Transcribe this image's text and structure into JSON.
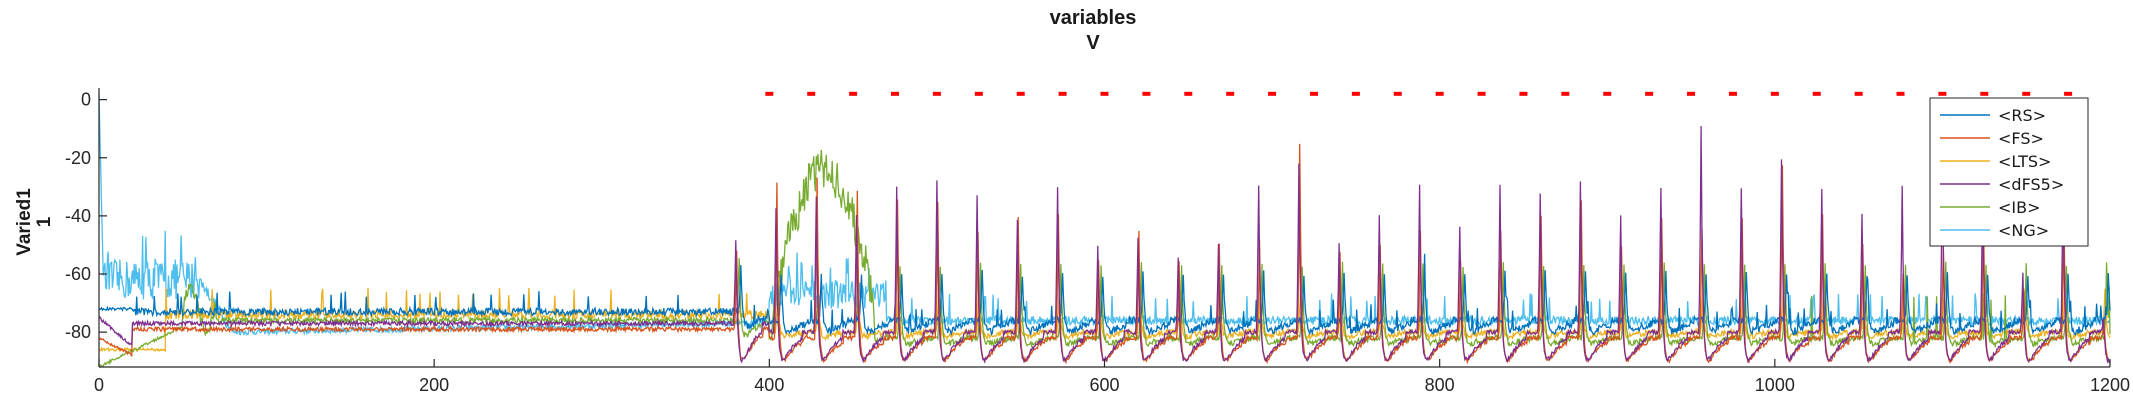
{
  "chart_data": {
    "type": "line",
    "title": "variables",
    "subtitle": "V",
    "ylabel": "Varied1",
    "ylabel2": "1",
    "xlabel": "",
    "xlim": [
      0,
      1200
    ],
    "ylim": [
      -92,
      4
    ],
    "x_ticks": [
      0,
      200,
      400,
      600,
      800,
      1000,
      1200
    ],
    "y_ticks": [
      0,
      -20,
      -40,
      -60,
      -80
    ],
    "grid": false,
    "legend_position": "top-right",
    "series": [
      {
        "name": "<RS>",
        "color": "#0072BD"
      },
      {
        "name": "<FS>",
        "color": "#D95319"
      },
      {
        "name": "<LTS>",
        "color": "#EDB120"
      },
      {
        "name": "<dFS5>",
        "color": "#7E2F8E"
      },
      {
        "name": "<IB>",
        "color": "#77AC30"
      },
      {
        "name": "<NG>",
        "color": "#4DBEEE"
      }
    ],
    "stimulus_markers": {
      "color": "#FF0000",
      "y": 2,
      "x": [
        400,
        425,
        450,
        475,
        500,
        525,
        550,
        575,
        600,
        625,
        650,
        675,
        700,
        725,
        750,
        775,
        800,
        825,
        850,
        875,
        900,
        925,
        950,
        975,
        1000,
        1025,
        1050,
        1075,
        1100,
        1125,
        1150,
        1175
      ]
    },
    "spikes_x": [
      380,
      404,
      428,
      452,
      476,
      500,
      524,
      548,
      572,
      596,
      620,
      644,
      668,
      692,
      716,
      740,
      764,
      788,
      812,
      836,
      860,
      884,
      908,
      932,
      956,
      980,
      1004,
      1028,
      1052,
      1076,
      1100,
      1124,
      1148,
      1172,
      1196
    ],
    "purple_peaks": [
      -48,
      -37,
      -33,
      -40,
      -30,
      -28,
      -33,
      -42,
      -30,
      -50,
      -48,
      -55,
      -50,
      -30,
      -22,
      -50,
      -40,
      -30,
      -43,
      -30,
      -32,
      -28,
      -40,
      -30,
      -9,
      -30,
      -20,
      -30,
      -40,
      -30,
      -20,
      -30,
      -60,
      -30,
      -75
    ],
    "orange_peaks": [
      -52,
      -28,
      -27,
      -32,
      -35,
      -35,
      -45,
      -40,
      -40,
      -55,
      -45,
      -55,
      -50,
      -48,
      -15,
      -52,
      -50,
      -45,
      -55,
      -45,
      -40,
      -35,
      -50,
      -40,
      -45,
      -40,
      -22,
      -40,
      -50,
      -60,
      -50,
      -40,
      -65,
      -40,
      -76
    ],
    "ib_burst": {
      "x_start": 402,
      "x_end": 463,
      "level": -30
    },
    "ng_noise_level": -65
  }
}
